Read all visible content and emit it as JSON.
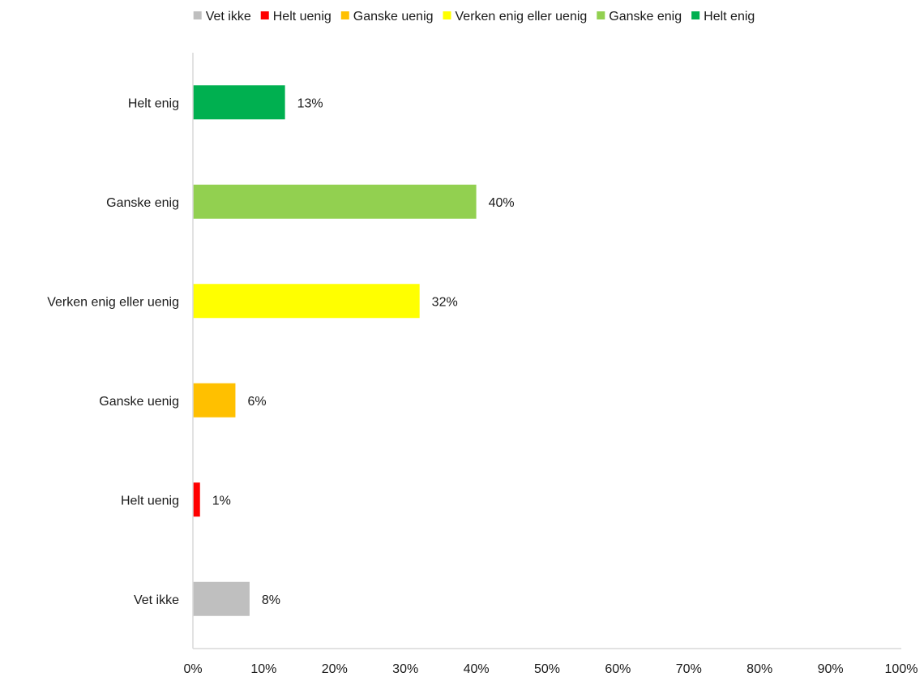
{
  "chart_data": {
    "type": "bar",
    "orientation": "horizontal",
    "categories": [
      "Helt enig",
      "Ganske enig",
      "Verken enig eller uenig",
      "Ganske uenig",
      "Helt uenig",
      "Vet ikke"
    ],
    "values": [
      13,
      40,
      32,
      6,
      1,
      8
    ],
    "data_labels": [
      "13%",
      "40%",
      "32%",
      "6%",
      "1%",
      "8%"
    ],
    "colors": [
      "#00b050",
      "#92d050",
      "#ffff00",
      "#ffc000",
      "#ff0000",
      "#bfbfbf"
    ],
    "xlim": [
      0,
      100
    ],
    "x_ticks": [
      0,
      10,
      20,
      30,
      40,
      50,
      60,
      70,
      80,
      90,
      100
    ],
    "x_tick_labels": [
      "0%",
      "10%",
      "20%",
      "30%",
      "40%",
      "50%",
      "60%",
      "70%",
      "80%",
      "90%",
      "100%"
    ],
    "grid": false,
    "legend_position": "top",
    "legend": [
      {
        "label": "Vet ikke",
        "color": "#bfbfbf"
      },
      {
        "label": "Helt uenig",
        "color": "#ff0000"
      },
      {
        "label": "Ganske uenig",
        "color": "#ffc000"
      },
      {
        "label": "Verken enig eller uenig",
        "color": "#ffff00"
      },
      {
        "label": "Ganske enig",
        "color": "#92d050"
      },
      {
        "label": "Helt enig",
        "color": "#00b050"
      }
    ],
    "axis_color": "#d9d9d9"
  }
}
